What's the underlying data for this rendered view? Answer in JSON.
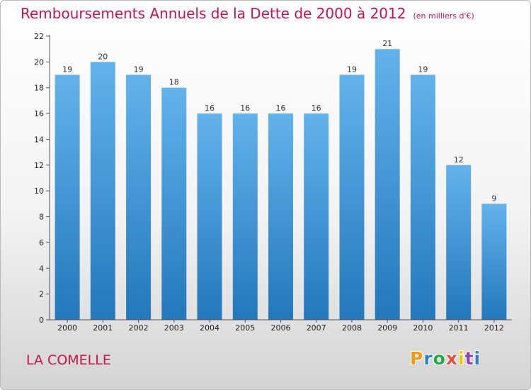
{
  "header": {
    "title": "Remboursements Annuels de la Dette de 2000 à 2012",
    "unit": "(en milliers d'€)"
  },
  "commune": "LA COMELLE",
  "logo": {
    "text": "Proxiti",
    "letter_colors": [
      "#f39c12",
      "#2f7fc8",
      "#27a844",
      "#e74c3c",
      "#f1c40f",
      "#8e44ad",
      "#2f7fc8"
    ]
  },
  "colors": {
    "title": "#c0164a",
    "bar_top": "#63b2ec",
    "bar_bottom": "#2378bb"
  },
  "chart_data": {
    "type": "bar",
    "title": "Remboursements Annuels de la Dette de 2000 à 2012",
    "xlabel": "",
    "ylabel": "",
    "categories": [
      "2000",
      "2001",
      "2002",
      "2003",
      "2004",
      "2005",
      "2006",
      "2007",
      "2008",
      "2009",
      "2010",
      "2011",
      "2012"
    ],
    "values": [
      19,
      20,
      19,
      18,
      16,
      16,
      16,
      16,
      19,
      21,
      19,
      12,
      9
    ],
    "ylim": [
      0,
      22
    ],
    "yticks": [
      0,
      2,
      4,
      6,
      8,
      10,
      12,
      14,
      16,
      18,
      20,
      22
    ],
    "grid": false,
    "legend": "none"
  }
}
